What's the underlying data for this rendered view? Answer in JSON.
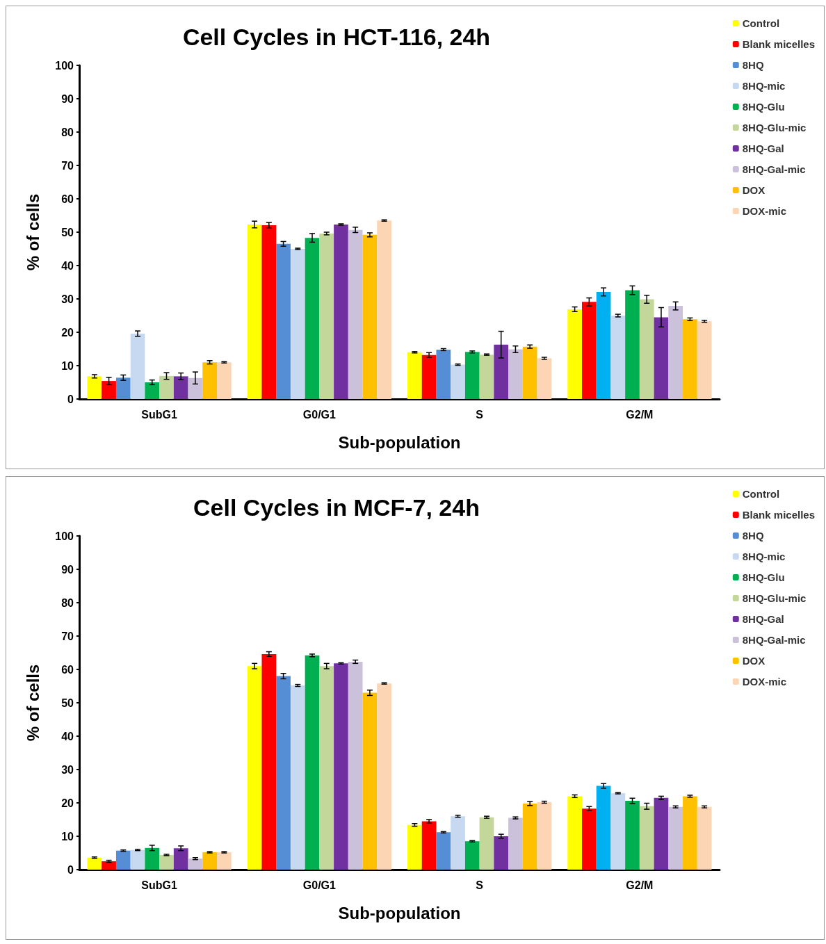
{
  "chart_data": [
    {
      "type": "bar",
      "title": "Cell Cycles in HCT-116, 24h",
      "xlabel": "Sub-population",
      "ylabel": "% of cells",
      "categories": [
        "SubG1",
        "G0/G1",
        "S",
        "G2/M"
      ],
      "ylim": [
        0,
        100
      ],
      "yticks": [
        0,
        10,
        20,
        30,
        40,
        50,
        60,
        70,
        80,
        90,
        100
      ],
      "grid": false,
      "legend": "top right",
      "series": [
        {
          "name": "Control",
          "color": "#ffff00",
          "values": [
            6.8,
            52.3,
            14.0,
            26.9
          ],
          "errors": [
            0.5,
            1.0,
            0.2,
            0.7
          ]
        },
        {
          "name": "Blank micelles",
          "color": "#ff0000",
          "values": [
            5.4,
            52.1,
            13.2,
            29.1
          ],
          "errors": [
            1.1,
            0.8,
            0.7,
            1.2
          ]
        },
        {
          "name": "8HQ",
          "color": "#558ed5",
          "colors": [
            "#558ed5",
            "#558ed5",
            "#558ed5",
            "#00b0f0"
          ],
          "values": [
            6.4,
            46.5,
            14.8,
            32.1
          ],
          "errors": [
            0.8,
            0.7,
            0.3,
            1.2
          ]
        },
        {
          "name": "8HQ-mic",
          "color": "#c6d9f1",
          "values": [
            19.6,
            45.0,
            10.3,
            25.0
          ],
          "errors": [
            0.8,
            0.2,
            0.2,
            0.4
          ]
        },
        {
          "name": "8HQ-Glu",
          "color": "#00b050",
          "values": [
            5.0,
            48.3,
            14.1,
            32.6
          ],
          "errors": [
            0.7,
            1.3,
            0.3,
            1.3
          ]
        },
        {
          "name": "8HQ-Glu-mic",
          "color": "#c4d79b",
          "values": [
            6.9,
            49.6,
            13.3,
            29.9
          ],
          "errors": [
            1.0,
            0.4,
            0.2,
            1.2
          ]
        },
        {
          "name": "8HQ-Gal",
          "color": "#7030a0",
          "values": [
            6.8,
            52.3,
            16.3,
            24.5
          ],
          "errors": [
            1.0,
            0.2,
            4.0,
            2.9
          ]
        },
        {
          "name": "8HQ-Gal-mic",
          "color": "#ccc1da",
          "values": [
            6.3,
            50.7,
            14.9,
            27.9
          ],
          "errors": [
            1.8,
            0.8,
            1.0,
            1.2
          ]
        },
        {
          "name": "DOX",
          "color": "#ffc000",
          "values": [
            11.0,
            49.2,
            15.7,
            23.9
          ],
          "errors": [
            0.5,
            0.6,
            0.5,
            0.4
          ]
        },
        {
          "name": "DOX-mic",
          "color": "#fcd5b5",
          "values": [
            11.0,
            53.5,
            12.2,
            23.3
          ],
          "errors": [
            0.2,
            0.2,
            0.3,
            0.3
          ]
        }
      ]
    },
    {
      "type": "bar",
      "title": "Cell Cycles in MCF-7, 24h",
      "xlabel": "Sub-population",
      "ylabel": "% of cells",
      "categories": [
        "SubG1",
        "G0/G1",
        "S",
        "G2/M"
      ],
      "ylim": [
        0,
        100
      ],
      "yticks": [
        0,
        10,
        20,
        30,
        40,
        50,
        60,
        70,
        80,
        90,
        100
      ],
      "grid": false,
      "legend": "top right",
      "series": [
        {
          "name": "Control",
          "color": "#ffff00",
          "values": [
            3.6,
            61.0,
            13.4,
            22.0
          ],
          "errors": [
            0.2,
            0.8,
            0.4,
            0.4
          ]
        },
        {
          "name": "Blank micelles",
          "color": "#ff0000",
          "values": [
            2.5,
            64.6,
            14.5,
            18.3
          ],
          "errors": [
            0.3,
            0.7,
            0.5,
            0.6
          ]
        },
        {
          "name": "8HQ",
          "color": "#558ed5",
          "colors": [
            "#558ed5",
            "#558ed5",
            "#558ed5",
            "#00b0f0"
          ],
          "values": [
            5.7,
            58.0,
            11.2,
            25.1
          ],
          "errors": [
            0.2,
            0.8,
            0.2,
            0.7
          ]
        },
        {
          "name": "8HQ-mic",
          "color": "#c6d9f1",
          "values": [
            5.9,
            55.2,
            16.0,
            22.9
          ],
          "errors": [
            0.2,
            0.3,
            0.3,
            0.2
          ]
        },
        {
          "name": "8HQ-Glu",
          "color": "#00b050",
          "values": [
            6.5,
            64.2,
            8.5,
            20.6
          ],
          "errors": [
            0.8,
            0.4,
            0.2,
            0.8
          ]
        },
        {
          "name": "8HQ-Glu-mic",
          "color": "#c4d79b",
          "values": [
            4.4,
            61.0,
            15.7,
            19.0
          ],
          "errors": [
            0.2,
            0.8,
            0.3,
            0.9
          ]
        },
        {
          "name": "8HQ-Gal",
          "color": "#7030a0",
          "values": [
            6.4,
            61.8,
            10.0,
            21.5
          ],
          "errors": [
            0.7,
            0.2,
            0.6,
            0.5
          ]
        },
        {
          "name": "8HQ-Gal-mic",
          "color": "#ccc1da",
          "values": [
            3.3,
            62.3,
            15.5,
            18.8
          ],
          "errors": [
            0.3,
            0.5,
            0.3,
            0.3
          ]
        },
        {
          "name": "DOX",
          "color": "#ffc000",
          "values": [
            5.2,
            53.0,
            19.8,
            22.0
          ],
          "errors": [
            0.2,
            0.8,
            0.6,
            0.3
          ]
        },
        {
          "name": "DOX-mic",
          "color": "#fcd5b5",
          "values": [
            5.2,
            55.8,
            20.2,
            18.8
          ],
          "errors": [
            0.2,
            0.2,
            0.3,
            0.3
          ]
        }
      ]
    }
  ]
}
